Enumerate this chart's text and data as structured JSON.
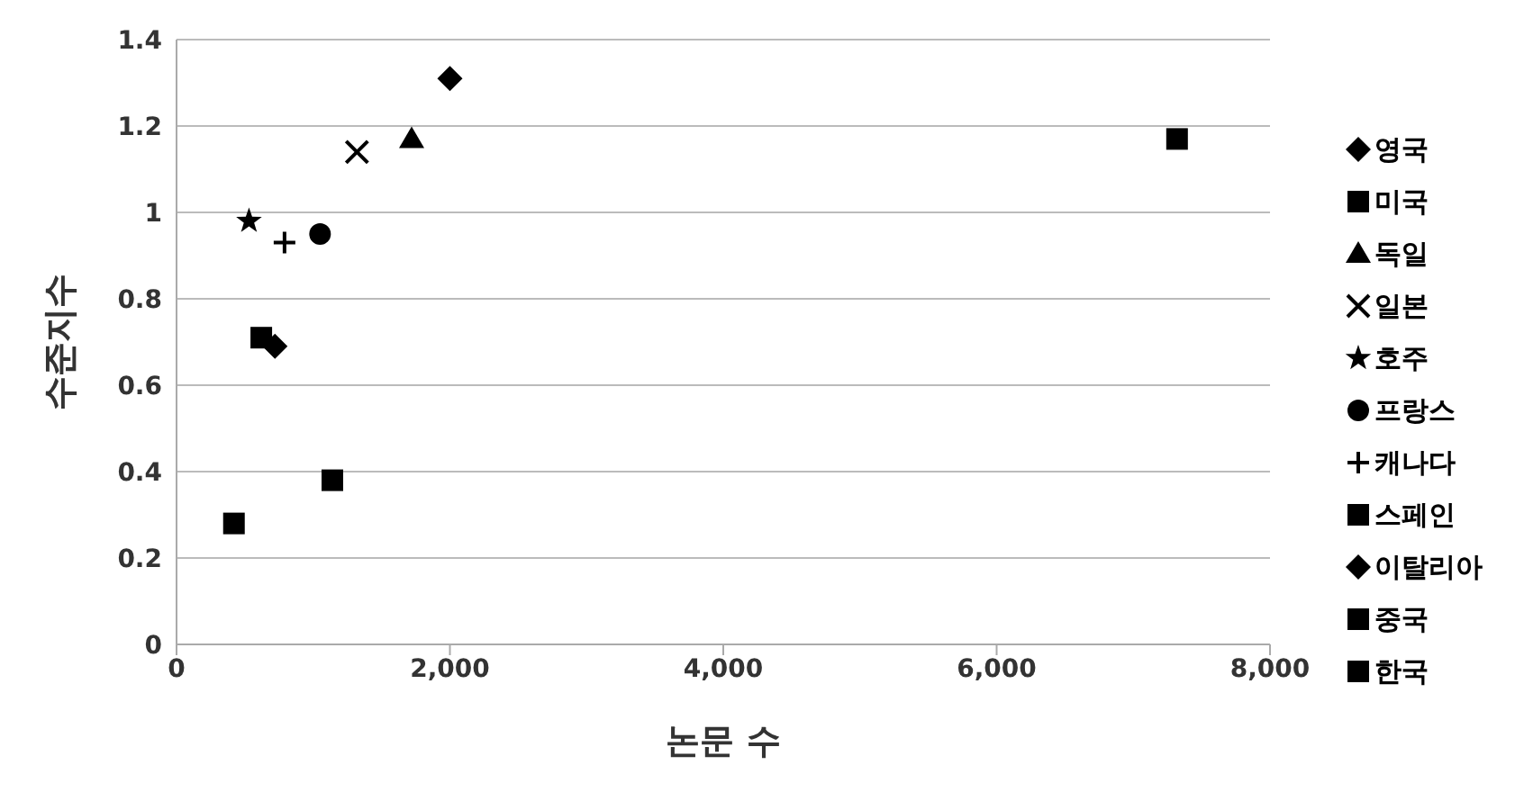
{
  "chart_data": {
    "type": "scatter",
    "xlabel": "논문 수",
    "ylabel": "수준지수",
    "xlim": [
      0,
      8000
    ],
    "xticks": [
      0,
      {
        "value": 2000,
        "label": "2,000"
      },
      {
        "value": 4000,
        "label": "4,000"
      },
      {
        "value": 6000,
        "label": "6,000"
      },
      {
        "value": 8000,
        "label": "8,000"
      }
    ],
    "ylim": [
      0,
      1.4
    ],
    "yticks": [
      0,
      0.2,
      0.4,
      0.6,
      0.8,
      1,
      1.2,
      1.4
    ],
    "grid": "y",
    "legend": "right",
    "series": [
      {
        "name": "영국",
        "color": "#000000",
        "marker": "diamond",
        "x": [
          2000
        ],
        "values": [
          1.31
        ]
      },
      {
        "name": "미국",
        "color": "#000000",
        "marker": "square",
        "x": [
          7320
        ],
        "values": [
          1.17
        ]
      },
      {
        "name": "독일",
        "color": "#000000",
        "marker": "triangle",
        "x": [
          1720
        ],
        "values": [
          1.17
        ]
      },
      {
        "name": "일본",
        "color": "#000000",
        "marker": "x",
        "x": [
          1320
        ],
        "values": [
          1.14
        ]
      },
      {
        "name": "호주",
        "color": "#000000",
        "marker": "star",
        "x": [
          530
        ],
        "values": [
          0.98
        ]
      },
      {
        "name": "프랑스",
        "color": "#000000",
        "marker": "circle",
        "x": [
          1050
        ],
        "values": [
          0.95
        ]
      },
      {
        "name": "캐나다",
        "color": "#000000",
        "marker": "cross",
        "x": [
          790
        ],
        "values": [
          0.93
        ]
      },
      {
        "name": "스페인",
        "color": "#000000",
        "marker": "square",
        "x": [
          620
        ],
        "values": [
          0.71
        ]
      },
      {
        "name": "이탈리아",
        "color": "#000000",
        "marker": "diamond",
        "x": [
          720
        ],
        "values": [
          0.69
        ]
      },
      {
        "name": "중국",
        "color": "#000000",
        "marker": "square",
        "x": [
          1140
        ],
        "values": [
          0.38
        ]
      },
      {
        "name": "한국",
        "color": "#000000",
        "marker": "square",
        "x": [
          420
        ],
        "values": [
          0.28
        ]
      }
    ]
  }
}
